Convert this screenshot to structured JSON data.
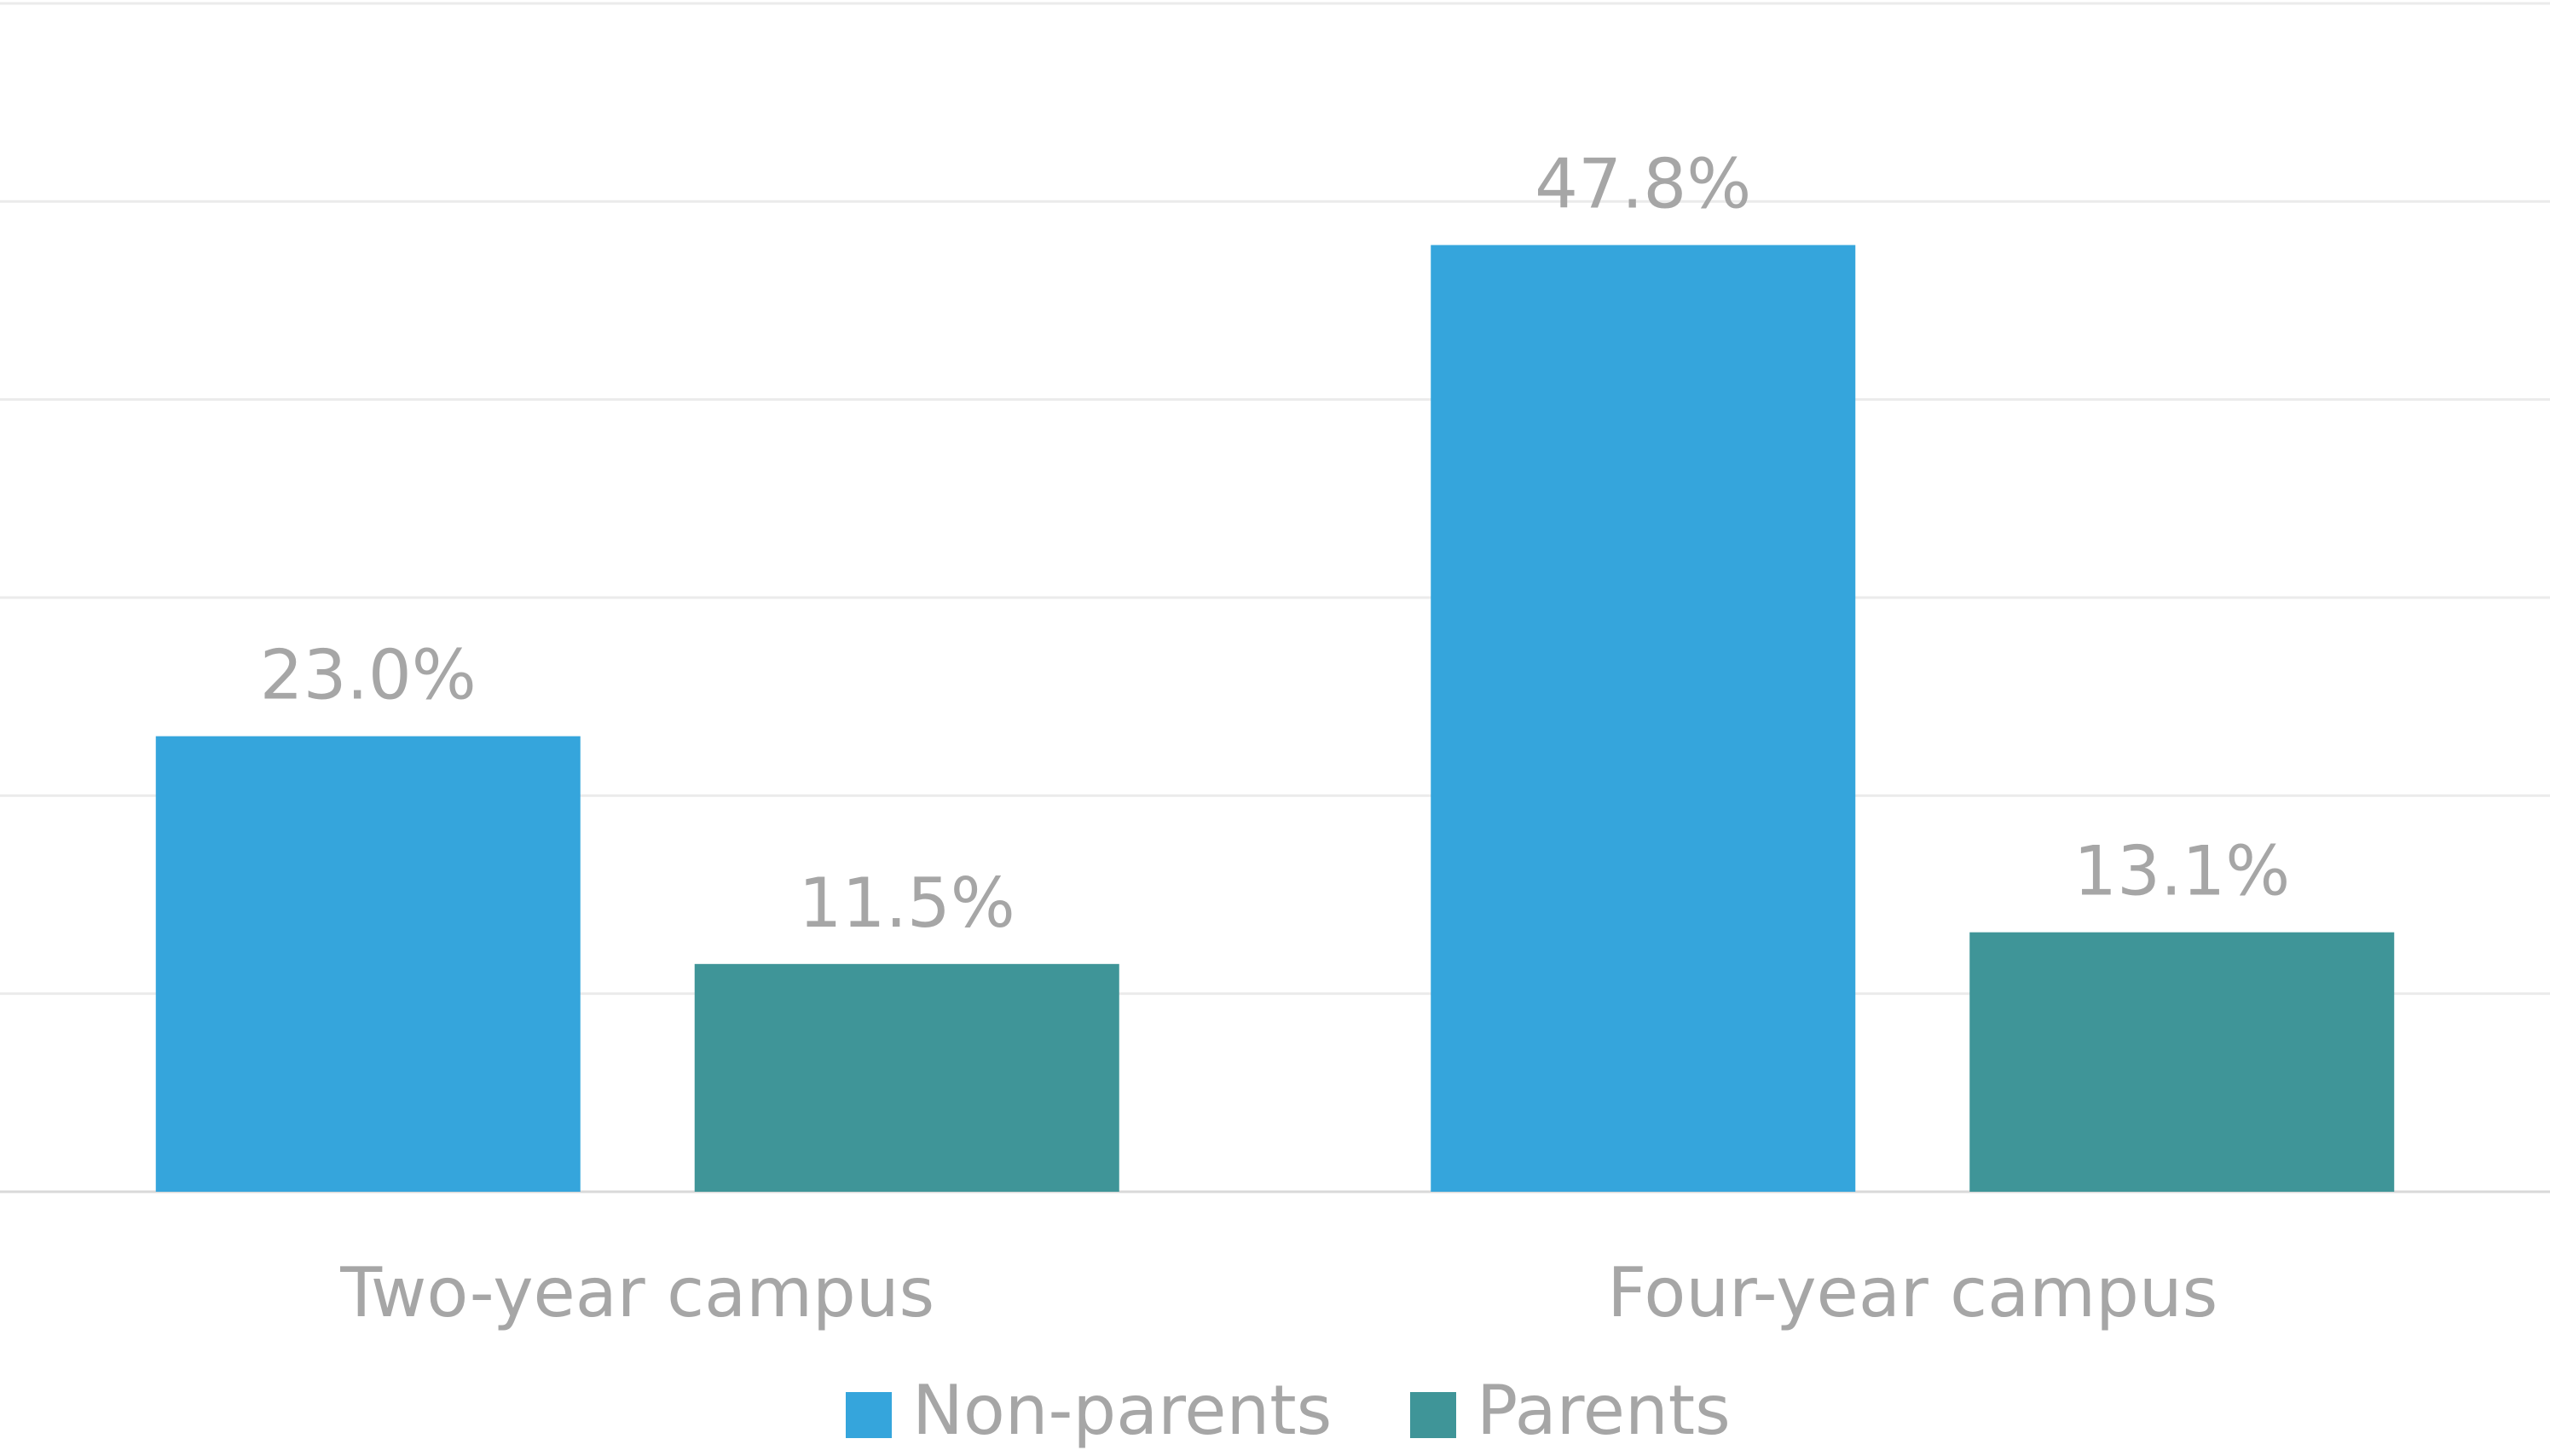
{
  "chart_data": {
    "type": "bar",
    "categories": [
      "Two-year campus",
      "Four-year campus"
    ],
    "series": [
      {
        "name": "Non-parents",
        "color": "#35a5dc",
        "values": [
          23.0,
          47.8
        ],
        "value_labels": [
          "23.0%",
          "47.8%"
        ]
      },
      {
        "name": "Parents",
        "color": "#3f9598",
        "values": [
          11.5,
          13.1
        ],
        "value_labels": [
          "11.5%",
          "13.1%"
        ]
      }
    ],
    "ylim": [
      0,
      60
    ],
    "yticks": [
      0,
      10,
      20,
      30,
      40,
      50,
      60
    ],
    "grid": true,
    "legend": "bottom"
  }
}
